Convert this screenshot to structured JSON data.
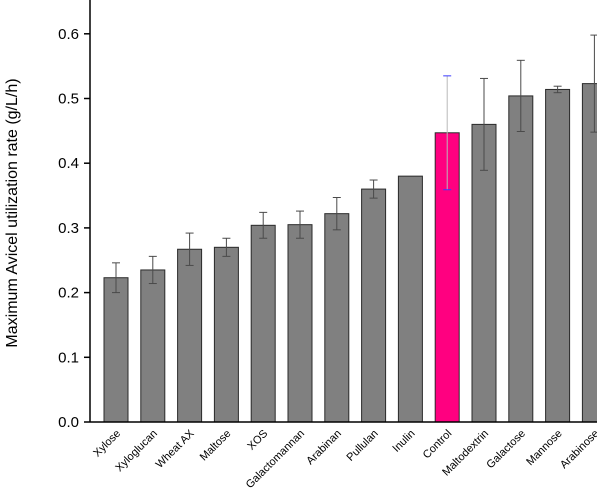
{
  "chart_data": {
    "type": "bar",
    "title": "",
    "xlabel": "",
    "ylabel": "Maximum Avicel utilization rate (g/L/h)",
    "ylim": [
      0.0,
      0.65
    ],
    "yticks": [
      "0.0",
      "0.1",
      "0.2",
      "0.3",
      "0.4",
      "0.5",
      "0.6"
    ],
    "grid": false,
    "categories": [
      "Xylose",
      "Xyloglucan",
      "Wheat AX",
      "Maltose",
      "XOS",
      "Galactomannan",
      "Arabinan",
      "Pullulan",
      "Inulin",
      "Control",
      "Maltodextrin",
      "Galactose",
      "Mannose",
      "Arabinose"
    ],
    "values": [
      0.223,
      0.235,
      0.267,
      0.27,
      0.304,
      0.305,
      0.322,
      0.36,
      0.38,
      0.447,
      0.46,
      0.504,
      0.514,
      0.523
    ],
    "errors": [
      0.023,
      0.021,
      0.025,
      0.014,
      0.02,
      0.021,
      0.025,
      0.014,
      0.0,
      0.088,
      0.071,
      0.055,
      0.005,
      0.075
    ],
    "bar_color": "#808080",
    "highlight_category": "Control",
    "highlight_color": "#ff0080",
    "highlight_errorbar_cap_color": "#3a3aff"
  }
}
